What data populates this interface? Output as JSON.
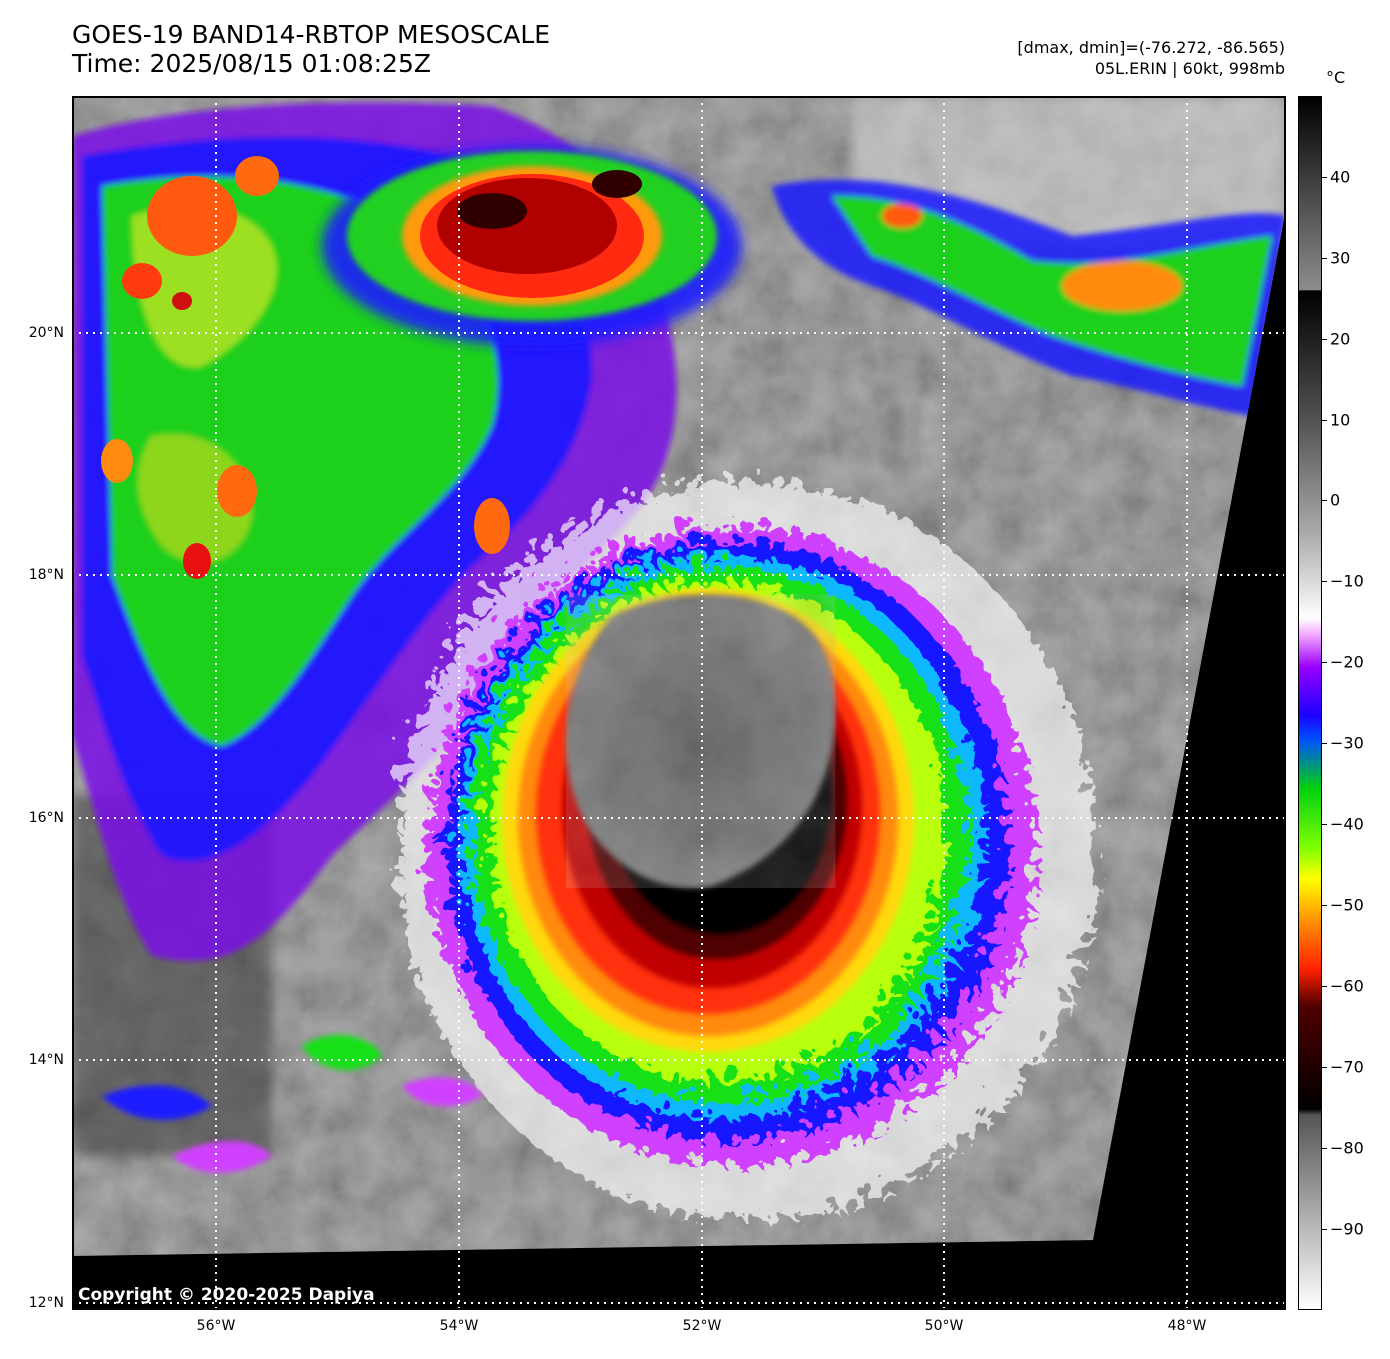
{
  "title_line1": "GOES-19 BAND14-RBTOP MESOSCALE",
  "title_line2": "Time: 2025/08/15 01:08:25Z",
  "range_text": "[dmax, dmin]=(-76.272, -86.565)",
  "storm_text": "05L.ERIN | 60kt, 998mb",
  "copyright": "Copyright © 2020-2025 Dapiya",
  "lat_labels": [
    "20°N",
    "18°N",
    "16°N",
    "14°N",
    "12°N"
  ],
  "lon_labels": [
    "56°W",
    "54°W",
    "52°W",
    "50°W",
    "48°W"
  ],
  "colorbar": {
    "unit": "°C",
    "ticks": [
      "40",
      "30",
      "20",
      "10",
      "0",
      "−10",
      "−20",
      "−30",
      "−40",
      "−50",
      "−60",
      "−70",
      "−80",
      "−90"
    ],
    "range": [
      -100,
      50
    ]
  },
  "extent": {
    "lon": [
      -57.2,
      -47.2
    ],
    "lat": [
      12,
      21.95
    ]
  }
}
